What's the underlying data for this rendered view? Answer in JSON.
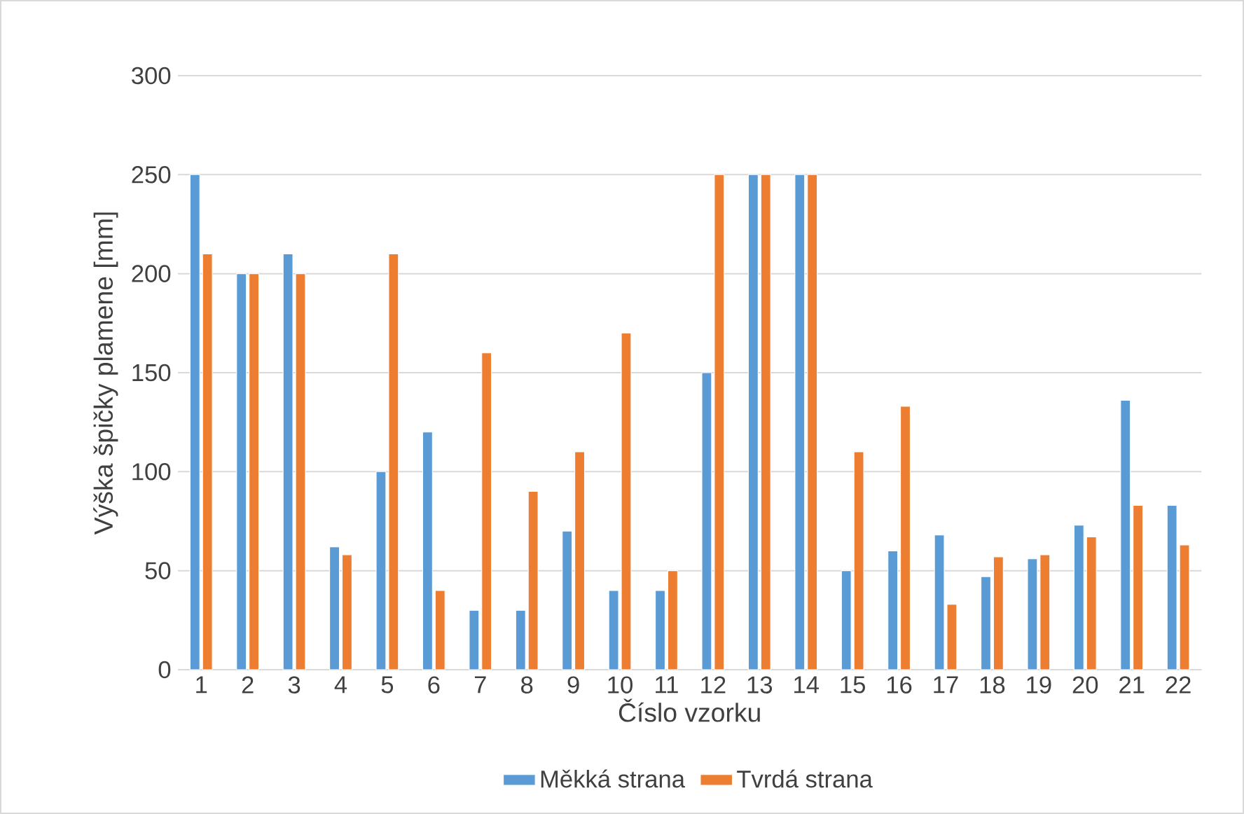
{
  "chart_data": {
    "type": "bar",
    "xlabel": "Číslo vzorku",
    "ylabel": "Výška špičky plamene [mm]",
    "categories": [
      "1",
      "2",
      "3",
      "4",
      "5",
      "6",
      "7",
      "8",
      "9",
      "10",
      "11",
      "12",
      "13",
      "14",
      "15",
      "16",
      "17",
      "18",
      "19",
      "20",
      "21",
      "22"
    ],
    "series": [
      {
        "name": "Měkká strana",
        "color": "#5b9bd5",
        "values": [
          250,
          200,
          210,
          62,
          100,
          120,
          30,
          30,
          70,
          40,
          40,
          150,
          250,
          250,
          50,
          60,
          68,
          47,
          56,
          73,
          136,
          83
        ]
      },
      {
        "name": "Tvrdá strana",
        "color": "#ed7d31",
        "values": [
          210,
          200,
          200,
          58,
          210,
          40,
          160,
          90,
          110,
          170,
          50,
          250,
          250,
          250,
          110,
          133,
          33,
          57,
          58,
          67,
          83,
          63
        ]
      }
    ],
    "ylim": [
      0,
      300
    ],
    "yticks": [
      0,
      50,
      100,
      150,
      200,
      250,
      300
    ],
    "grid": "y",
    "legend": "bottom"
  }
}
